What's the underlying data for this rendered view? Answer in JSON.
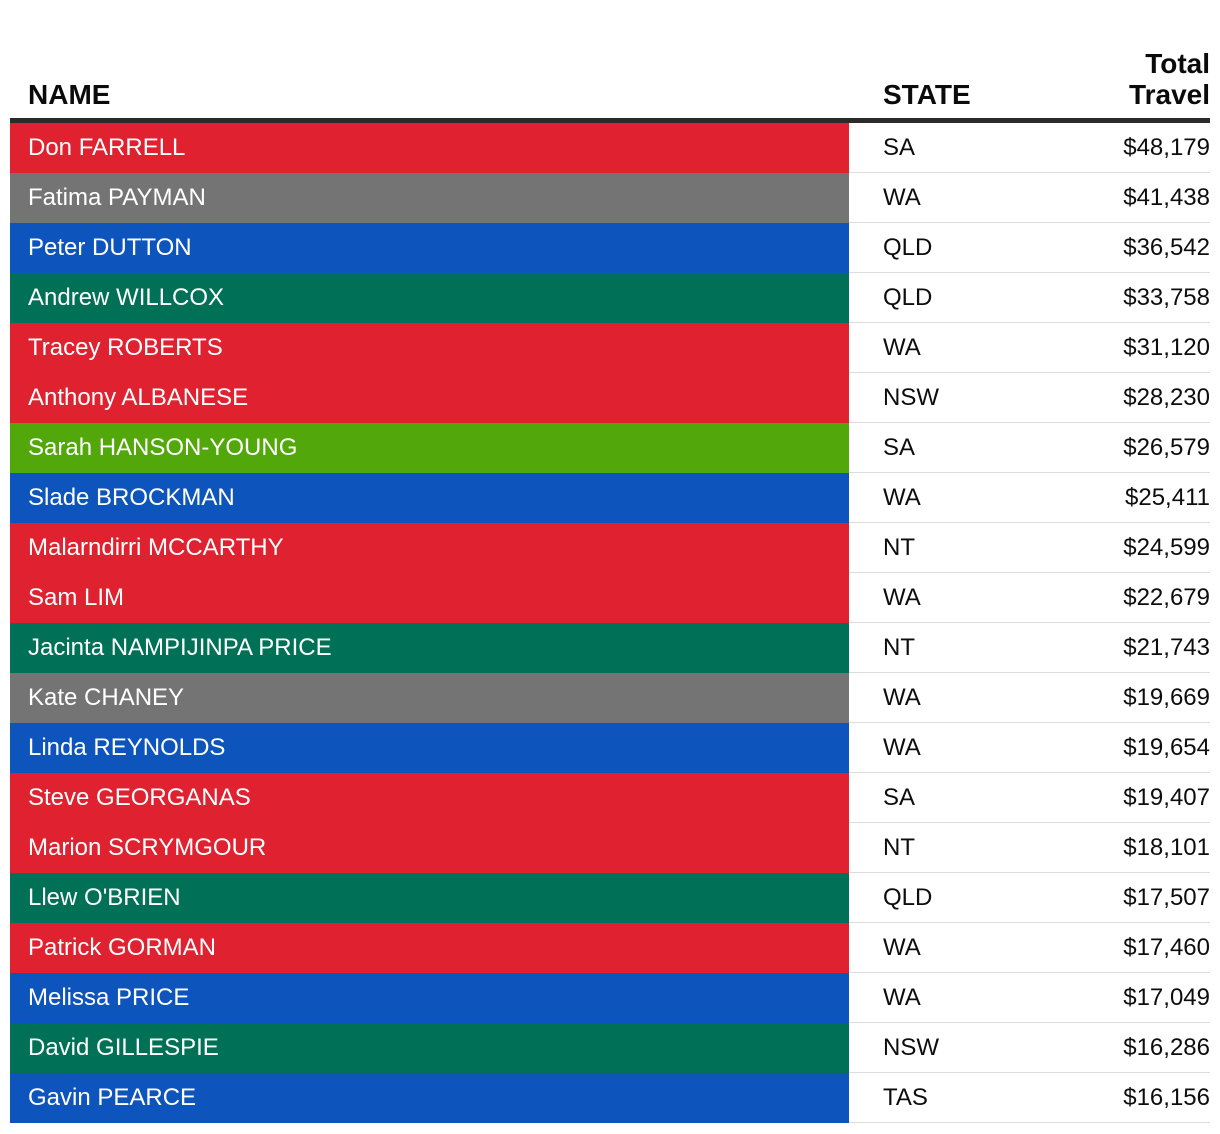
{
  "header": {
    "name_label": "NAME",
    "state_label": "STATE",
    "travel_label_line1": "Total",
    "travel_label_line2": "Travel"
  },
  "colors": {
    "red": "#df2130",
    "blue": "#0d54bd",
    "teal": "#007156",
    "green": "#52a80a",
    "gray": "#747474",
    "header_rule": "#2b2b2b",
    "divider": "#dcdcdc",
    "name_text": "#ffffff",
    "cell_text": "#0d0d0d"
  },
  "chart_data": {
    "type": "table",
    "title": "",
    "columns": [
      "NAME",
      "STATE",
      "Total Travel"
    ],
    "rows": [
      {
        "name": "Don FARRELL",
        "state": "SA",
        "travel": "$48,179",
        "color": "red"
      },
      {
        "name": "Fatima PAYMAN",
        "state": "WA",
        "travel": "$41,438",
        "color": "gray"
      },
      {
        "name": "Peter DUTTON",
        "state": "QLD",
        "travel": "$36,542",
        "color": "blue"
      },
      {
        "name": "Andrew WILLCOX",
        "state": "QLD",
        "travel": "$33,758",
        "color": "teal"
      },
      {
        "name": "Tracey ROBERTS",
        "state": "WA",
        "travel": "$31,120",
        "color": "red"
      },
      {
        "name": "Anthony ALBANESE",
        "state": "NSW",
        "travel": "$28,230",
        "color": "red"
      },
      {
        "name": "Sarah HANSON-YOUNG",
        "state": "SA",
        "travel": "$26,579",
        "color": "green"
      },
      {
        "name": "Slade BROCKMAN",
        "state": "WA",
        "travel": "$25,411",
        "color": "blue"
      },
      {
        "name": "Malarndirri MCCARTHY",
        "state": "NT",
        "travel": "$24,599",
        "color": "red"
      },
      {
        "name": "Sam LIM",
        "state": "WA",
        "travel": "$22,679",
        "color": "red"
      },
      {
        "name": "Jacinta NAMPIJINPA PRICE",
        "state": "NT",
        "travel": "$21,743",
        "color": "teal"
      },
      {
        "name": "Kate CHANEY",
        "state": "WA",
        "travel": "$19,669",
        "color": "gray"
      },
      {
        "name": "Linda REYNOLDS",
        "state": "WA",
        "travel": "$19,654",
        "color": "blue"
      },
      {
        "name": "Steve GEORGANAS",
        "state": "SA",
        "travel": "$19,407",
        "color": "red"
      },
      {
        "name": "Marion SCRYMGOUR",
        "state": "NT",
        "travel": "$18,101",
        "color": "red"
      },
      {
        "name": "Llew O'BRIEN",
        "state": "QLD",
        "travel": "$17,507",
        "color": "teal"
      },
      {
        "name": "Patrick GORMAN",
        "state": "WA",
        "travel": "$17,460",
        "color": "red"
      },
      {
        "name": "Melissa PRICE",
        "state": "WA",
        "travel": "$17,049",
        "color": "blue"
      },
      {
        "name": "David GILLESPIE",
        "state": "NSW",
        "travel": "$16,286",
        "color": "teal"
      },
      {
        "name": "Gavin PEARCE",
        "state": "TAS",
        "travel": "$16,156",
        "color": "blue"
      }
    ]
  }
}
